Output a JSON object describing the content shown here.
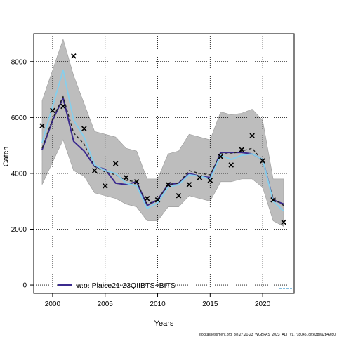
{
  "chart_data": {
    "type": "line",
    "title": "",
    "xlabel": "Years",
    "ylabel": "Catch",
    "xlim": [
      1998.2,
      2023
    ],
    "ylim": [
      -300,
      9000
    ],
    "x_ticks": [
      2000,
      2005,
      2010,
      2015,
      2020
    ],
    "y_ticks": [
      0,
      2000,
      4000,
      6000,
      8000
    ],
    "grid": true,
    "legend_position": "bottom",
    "legend": [
      {
        "label": "w.o. Plaice21-23QIIBTS+BITS",
        "color": "#3b2a8e"
      }
    ],
    "years": [
      1999,
      2000,
      2001,
      2002,
      2003,
      2004,
      2005,
      2006,
      2007,
      2008,
      2009,
      2010,
      2011,
      2012,
      2013,
      2014,
      2015,
      2016,
      2017,
      2018,
      2019,
      2020,
      2021,
      2022
    ],
    "band_upper": [
      6600,
      7700,
      8800,
      7500,
      6500,
      5500,
      5400,
      5300,
      4900,
      4800,
      3800,
      3800,
      4700,
      4800,
      5400,
      5300,
      5200,
      6200,
      6100,
      6150,
      6300,
      5900,
      3800,
      3800
    ],
    "band_lower": [
      3600,
      4400,
      5200,
      4100,
      3900,
      3300,
      3200,
      3100,
      2900,
      2800,
      2300,
      2300,
      2800,
      2800,
      3200,
      3100,
      3000,
      3700,
      3700,
      3800,
      3800,
      3500,
      2300,
      2100
    ],
    "series": [
      {
        "name": "w.o. Plaice21-23QIIBTS+BITS",
        "color": "#3b2a8e",
        "width": 2,
        "dash": "",
        "values": [
          4850,
          5900,
          6700,
          5150,
          4800,
          4250,
          4150,
          3650,
          3600,
          3700,
          2850,
          3050,
          3600,
          3650,
          4000,
          3900,
          3850,
          4750,
          4750,
          4750,
          4700,
          4500,
          3050,
          2900
        ]
      },
      {
        "name": "",
        "color": "#222222",
        "width": 1.3,
        "dash": "4,3",
        "values": [
          4900,
          5950,
          6750,
          5450,
          5050,
          4250,
          4050,
          3950,
          3750,
          3700,
          2900,
          3050,
          3600,
          3650,
          4100,
          4000,
          3950,
          4700,
          4700,
          4800,
          4900,
          4450,
          3100,
          2850
        ]
      },
      {
        "name": "",
        "color": "#87ceeb",
        "width": 2,
        "dash": "",
        "values": [
          5100,
          6400,
          7700,
          5900,
          5300,
          4300,
          4100,
          4000,
          3650,
          3550,
          2750,
          2950,
          3500,
          3600,
          3950,
          3900,
          3800,
          4650,
          4500,
          4650,
          4700,
          4500,
          3000,
          2650
        ]
      }
    ],
    "observations": {
      "marker": "x",
      "years": [
        1999,
        2000,
        2001,
        2002,
        2003,
        2004,
        2005,
        2006,
        2007,
        2008,
        2009,
        2010,
        2011,
        2012,
        2013,
        2014,
        2015,
        2016,
        2017,
        2018,
        2019,
        2020,
        2021,
        2022
      ],
      "values": [
        5700,
        6250,
        6400,
        8200,
        5600,
        4100,
        3550,
        4350,
        3850,
        3700,
        3100,
        3050,
        3600,
        3200,
        3600,
        3850,
        3750,
        4600,
        4300,
        4850,
        5350,
        4450,
        3050,
        2250
      ]
    }
  },
  "footer": {
    "text": "stockassessment.org, ple.27.21-23_WGBFAS_2023_ALT_v1, r18045, git:e38ea2b49f80"
  }
}
